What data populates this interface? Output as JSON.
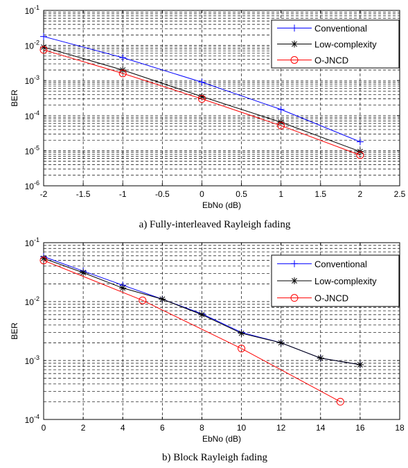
{
  "chart_data": [
    {
      "type": "line",
      "caption": "a) Fully-interleaved Rayleigh fading",
      "xlabel": "EbNo (dB)",
      "ylabel": "BER",
      "xlim": [
        -2,
        2.5
      ],
      "ylim": [
        1e-06,
        0.1
      ],
      "yscale": "log",
      "grid": true,
      "legend_position": "top-right",
      "x_ticks": [
        "-2",
        "-1.5",
        "-1",
        "-0.5",
        "0",
        "0.5",
        "1",
        "1.5",
        "2",
        "2.5"
      ],
      "y_tick_exponents": [
        "-6",
        "-5",
        "-4",
        "-3",
        "-2",
        "-1"
      ],
      "series": [
        {
          "name": "Conventional",
          "color": "#0000ff",
          "marker": "plus",
          "x": [
            -2,
            -1,
            0,
            1,
            2
          ],
          "y": [
            0.018,
            0.0045,
            0.0009,
            0.00015,
            1.8e-05
          ]
        },
        {
          "name": "Low-complexity",
          "color": "#000000",
          "marker": "asterisk",
          "x": [
            -2,
            -1,
            0,
            1,
            2
          ],
          "y": [
            0.009,
            0.002,
            0.00035,
            6.5e-05,
            9.5e-06
          ]
        },
        {
          "name": "O-JNCD",
          "color": "#ff0000",
          "marker": "circle",
          "x": [
            -2,
            -1,
            0,
            1,
            2
          ],
          "y": [
            0.0075,
            0.0016,
            0.0003,
            5.2e-05,
            7.5e-06
          ]
        }
      ]
    },
    {
      "type": "line",
      "caption": "b) Block Rayleigh fading",
      "xlabel": "EbNo (dB)",
      "ylabel": "BER",
      "xlim": [
        0,
        18
      ],
      "ylim": [
        0.0001,
        0.1
      ],
      "yscale": "log",
      "grid": true,
      "legend_position": "top-right",
      "x_ticks": [
        "0",
        "2",
        "4",
        "6",
        "8",
        "10",
        "12",
        "14",
        "16",
        "18"
      ],
      "y_tick_exponents": [
        "-4",
        "-3",
        "-2",
        "-1"
      ],
      "series": [
        {
          "name": "Conventional",
          "color": "#0000ff",
          "marker": "plus",
          "x": [
            0,
            2,
            4,
            6,
            8,
            10,
            12,
            14,
            16
          ],
          "y": [
            0.058,
            0.033,
            0.019,
            0.011,
            0.0062,
            0.003,
            0.002,
            0.0011,
            0.00085
          ]
        },
        {
          "name": "Low-complexity",
          "color": "#000000",
          "marker": "asterisk",
          "x": [
            0,
            2,
            4,
            6,
            8,
            10,
            12,
            14,
            16
          ],
          "y": [
            0.054,
            0.031,
            0.017,
            0.011,
            0.006,
            0.0029,
            0.002,
            0.0011,
            0.00085
          ]
        },
        {
          "name": "O-JNCD",
          "color": "#ff0000",
          "marker": "circle",
          "x": [
            0,
            5,
            10,
            15
          ],
          "y": [
            0.05,
            0.0105,
            0.0016,
            0.0002
          ]
        }
      ]
    }
  ]
}
